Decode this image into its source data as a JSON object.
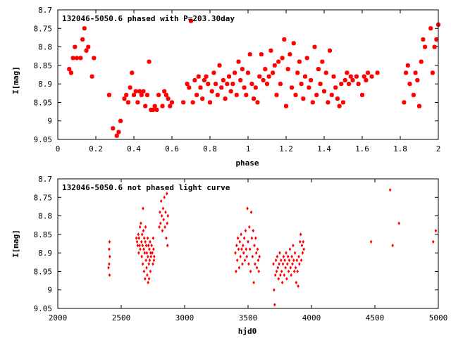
{
  "colors": {
    "points": "#ff0000",
    "axes": "#000000",
    "background": "#ffffff"
  },
  "chart_data": [
    {
      "type": "scatter",
      "title": "132046-5050.6 phased with P=203.30day",
      "xlabel": "phase",
      "ylabel": "I[mag]",
      "xlim": [
        0,
        2
      ],
      "ylim": [
        8.7,
        9.05
      ],
      "y_inverted": true,
      "grid": false,
      "xticks": [
        0,
        0.2,
        0.4,
        0.6,
        0.8,
        1,
        1.2,
        1.4,
        1.6,
        1.8,
        2
      ],
      "xtick_labels": [
        "0",
        "0.2",
        "0.4",
        "0.6",
        "0.8",
        "1",
        "1.2",
        "1.4",
        "1.6",
        "1.8",
        "2"
      ],
      "yticks": [
        8.7,
        8.75,
        8.8,
        8.85,
        8.9,
        8.95,
        9,
        9.05
      ],
      "ytick_labels": [
        "8.7",
        "8.75",
        "8.8",
        "8.85",
        "8.9",
        "8.95",
        "9",
        "9.05"
      ],
      "points": [
        [
          0.06,
          8.86
        ],
        [
          0.07,
          8.87
        ],
        [
          0.08,
          8.83
        ],
        [
          0.09,
          8.8
        ],
        [
          0.1,
          8.83
        ],
        [
          0.12,
          8.83
        ],
        [
          0.13,
          8.78
        ],
        [
          0.14,
          8.75
        ],
        [
          0.15,
          8.81
        ],
        [
          0.16,
          8.8
        ],
        [
          0.18,
          8.88
        ],
        [
          0.19,
          8.83
        ],
        [
          0.27,
          8.93
        ],
        [
          0.29,
          9.02
        ],
        [
          0.31,
          9.04
        ],
        [
          0.32,
          9.03
        ],
        [
          0.33,
          9.0
        ],
        [
          0.35,
          8.94
        ],
        [
          0.36,
          8.93
        ],
        [
          0.37,
          8.95
        ],
        [
          0.38,
          8.91
        ],
        [
          0.39,
          8.87
        ],
        [
          0.4,
          8.93
        ],
        [
          0.41,
          8.92
        ],
        [
          0.42,
          8.95
        ],
        [
          0.43,
          8.92
        ],
        [
          0.44,
          8.93
        ],
        [
          0.45,
          8.92
        ],
        [
          0.46,
          8.96
        ],
        [
          0.47,
          8.93
        ],
        [
          0.48,
          8.84
        ],
        [
          0.49,
          8.97
        ],
        [
          0.5,
          8.97
        ],
        [
          0.51,
          8.96
        ],
        [
          0.52,
          8.97
        ],
        [
          0.53,
          8.93
        ],
        [
          0.55,
          8.96
        ],
        [
          0.56,
          8.92
        ],
        [
          0.57,
          8.93
        ],
        [
          0.58,
          8.94
        ],
        [
          0.59,
          8.96
        ],
        [
          0.6,
          8.95
        ],
        [
          0.66,
          8.95
        ],
        [
          0.68,
          8.9
        ],
        [
          0.69,
          8.91
        ],
        [
          0.7,
          8.73
        ],
        [
          0.71,
          8.95
        ],
        [
          0.72,
          8.89
        ],
        [
          0.73,
          8.93
        ],
        [
          0.74,
          8.88
        ],
        [
          0.75,
          8.91
        ],
        [
          0.76,
          8.94
        ],
        [
          0.77,
          8.89
        ],
        [
          0.78,
          8.88
        ],
        [
          0.79,
          8.9
        ],
        [
          0.8,
          8.95
        ],
        [
          0.81,
          8.92
        ],
        [
          0.82,
          8.87
        ],
        [
          0.83,
          8.9
        ],
        [
          0.84,
          8.93
        ],
        [
          0.85,
          8.85
        ],
        [
          0.86,
          8.91
        ],
        [
          0.87,
          8.89
        ],
        [
          0.88,
          8.94
        ],
        [
          0.89,
          8.9
        ],
        [
          0.9,
          8.88
        ],
        [
          0.91,
          8.92
        ],
        [
          0.92,
          8.9
        ],
        [
          0.93,
          8.87
        ],
        [
          0.94,
          8.93
        ],
        [
          0.95,
          8.84
        ],
        [
          0.96,
          8.89
        ],
        [
          0.97,
          8.86
        ],
        [
          0.98,
          8.91
        ],
        [
          0.99,
          8.93
        ],
        [
          1.0,
          8.87
        ],
        [
          1.01,
          8.82
        ],
        [
          1.02,
          8.9
        ],
        [
          1.03,
          8.94
        ],
        [
          1.04,
          8.91
        ],
        [
          1.05,
          8.95
        ],
        [
          1.06,
          8.88
        ],
        [
          1.07,
          8.82
        ],
        [
          1.08,
          8.89
        ],
        [
          1.09,
          8.86
        ],
        [
          1.1,
          8.9
        ],
        [
          1.11,
          8.88
        ],
        [
          1.12,
          8.81
        ],
        [
          1.13,
          8.87
        ],
        [
          1.14,
          8.85
        ],
        [
          1.15,
          8.93
        ],
        [
          1.16,
          8.84
        ],
        [
          1.17,
          8.9
        ],
        [
          1.18,
          8.83
        ],
        [
          1.19,
          8.78
        ],
        [
          1.2,
          8.96
        ],
        [
          1.21,
          8.86
        ],
        [
          1.22,
          8.82
        ],
        [
          1.23,
          8.91
        ],
        [
          1.24,
          8.79
        ],
        [
          1.25,
          8.93
        ],
        [
          1.26,
          8.87
        ],
        [
          1.27,
          8.84
        ],
        [
          1.28,
          8.9
        ],
        [
          1.29,
          8.94
        ],
        [
          1.3,
          8.88
        ],
        [
          1.31,
          8.83
        ],
        [
          1.32,
          8.91
        ],
        [
          1.33,
          8.89
        ],
        [
          1.34,
          8.95
        ],
        [
          1.35,
          8.8
        ],
        [
          1.36,
          8.93
        ],
        [
          1.37,
          8.86
        ],
        [
          1.38,
          8.9
        ],
        [
          1.39,
          8.84
        ],
        [
          1.4,
          8.92
        ],
        [
          1.41,
          8.87
        ],
        [
          1.42,
          8.95
        ],
        [
          1.43,
          8.81
        ],
        [
          1.44,
          8.93
        ],
        [
          1.45,
          8.88
        ],
        [
          1.46,
          8.91
        ],
        [
          1.47,
          8.94
        ],
        [
          1.48,
          8.96
        ],
        [
          1.49,
          8.9
        ],
        [
          1.5,
          8.95
        ],
        [
          1.51,
          8.89
        ],
        [
          1.52,
          8.87
        ],
        [
          1.53,
          8.9
        ],
        [
          1.54,
          8.88
        ],
        [
          1.55,
          8.89
        ],
        [
          1.57,
          8.88
        ],
        [
          1.58,
          8.9
        ],
        [
          1.6,
          8.93
        ],
        [
          1.61,
          8.88
        ],
        [
          1.62,
          8.89
        ],
        [
          1.63,
          8.87
        ],
        [
          1.65,
          8.88
        ],
        [
          1.68,
          8.87
        ],
        [
          1.82,
          8.95
        ],
        [
          1.83,
          8.87
        ],
        [
          1.84,
          8.85
        ],
        [
          1.85,
          8.9
        ],
        [
          1.87,
          8.93
        ],
        [
          1.88,
          8.87
        ],
        [
          1.89,
          8.89
        ],
        [
          1.9,
          8.96
        ],
        [
          1.91,
          8.84
        ],
        [
          1.92,
          8.78
        ],
        [
          1.93,
          8.8
        ],
        [
          1.96,
          8.75
        ],
        [
          1.97,
          8.87
        ],
        [
          1.98,
          8.8
        ],
        [
          1.99,
          8.78
        ],
        [
          2.0,
          8.74
        ]
      ]
    },
    {
      "type": "scatter",
      "title": "132046-5050.6 not phased light curve",
      "xlabel": "hjd0",
      "ylabel": "I[mag]",
      "xlim": [
        2000,
        5000
      ],
      "ylim": [
        8.7,
        9.05
      ],
      "y_inverted": true,
      "grid": false,
      "xticks": [
        2000,
        2500,
        3000,
        3500,
        4000,
        4500,
        5000
      ],
      "xtick_labels": [
        "2000",
        "2500",
        "3000",
        "3500",
        "4000",
        "4500",
        "5000"
      ],
      "yticks": [
        8.7,
        8.75,
        8.8,
        8.85,
        8.9,
        8.95,
        9,
        9.05
      ],
      "ytick_labels": [
        "8.7",
        "8.75",
        "8.8",
        "8.85",
        "8.9",
        "8.95",
        "9",
        "9.05"
      ],
      "points": [
        [
          2400,
          8.94
        ],
        [
          2405,
          8.93
        ],
        [
          2405,
          8.89
        ],
        [
          2408,
          8.87
        ],
        [
          2408,
          8.96
        ],
        [
          2410,
          8.91
        ],
        [
          2620,
          8.86
        ],
        [
          2625,
          8.87
        ],
        [
          2630,
          8.88
        ],
        [
          2635,
          8.85
        ],
        [
          2638,
          8.9
        ],
        [
          2640,
          8.86
        ],
        [
          2645,
          8.88
        ],
        [
          2648,
          8.83
        ],
        [
          2650,
          8.89
        ],
        [
          2655,
          8.82
        ],
        [
          2660,
          8.87
        ],
        [
          2662,
          8.91
        ],
        [
          2665,
          8.85
        ],
        [
          2668,
          8.88
        ],
        [
          2670,
          8.93
        ],
        [
          2672,
          8.78
        ],
        [
          2675,
          8.84
        ],
        [
          2678,
          8.89
        ],
        [
          2680,
          8.95
        ],
        [
          2682,
          8.86
        ],
        [
          2685,
          8.9
        ],
        [
          2688,
          8.97
        ],
        [
          2690,
          8.87
        ],
        [
          2692,
          8.83
        ],
        [
          2695,
          8.92
        ],
        [
          2698,
          8.88
        ],
        [
          2700,
          8.94
        ],
        [
          2702,
          8.9
        ],
        [
          2705,
          8.96
        ],
        [
          2708,
          8.86
        ],
        [
          2710,
          8.91
        ],
        [
          2712,
          8.98
        ],
        [
          2715,
          8.88
        ],
        [
          2718,
          8.93
        ],
        [
          2720,
          8.97
        ],
        [
          2722,
          8.89
        ],
        [
          2725,
          8.92
        ],
        [
          2728,
          8.87
        ],
        [
          2730,
          8.95
        ],
        [
          2732,
          8.9
        ],
        [
          2735,
          8.91
        ],
        [
          2740,
          8.88
        ],
        [
          2745,
          8.9
        ],
        [
          2750,
          8.93
        ],
        [
          2752,
          8.86
        ],
        [
          2755,
          8.89
        ],
        [
          2758,
          8.92
        ],
        [
          2760,
          8.91
        ],
        [
          2800,
          8.83
        ],
        [
          2805,
          8.79
        ],
        [
          2810,
          8.82
        ],
        [
          2815,
          8.76
        ],
        [
          2820,
          8.8
        ],
        [
          2825,
          8.84
        ],
        [
          2830,
          8.78
        ],
        [
          2835,
          8.81
        ],
        [
          2840,
          8.75
        ],
        [
          2845,
          8.83
        ],
        [
          2850,
          8.79
        ],
        [
          2855,
          8.86
        ],
        [
          2860,
          8.74
        ],
        [
          2862,
          8.82
        ],
        [
          2865,
          8.88
        ],
        [
          2868,
          8.8
        ],
        [
          3400,
          8.9
        ],
        [
          3405,
          8.95
        ],
        [
          3410,
          8.88
        ],
        [
          3415,
          8.92
        ],
        [
          3420,
          8.86
        ],
        [
          3425,
          8.89
        ],
        [
          3430,
          8.94
        ],
        [
          3435,
          8.87
        ],
        [
          3440,
          8.91
        ],
        [
          3445,
          8.85
        ],
        [
          3450,
          8.89
        ],
        [
          3455,
          8.93
        ],
        [
          3460,
          8.88
        ],
        [
          3465,
          8.9
        ],
        [
          3470,
          8.86
        ],
        [
          3475,
          8.92
        ],
        [
          3480,
          8.84
        ],
        [
          3485,
          8.89
        ],
        [
          3490,
          8.91
        ],
        [
          3495,
          8.78
        ],
        [
          3500,
          8.87
        ],
        [
          3505,
          8.93
        ],
        [
          3510,
          8.83
        ],
        [
          3515,
          8.89
        ],
        [
          3520,
          8.95
        ],
        [
          3525,
          8.79
        ],
        [
          3530,
          8.86
        ],
        [
          3535,
          8.91
        ],
        [
          3540,
          8.84
        ],
        [
          3545,
          8.98
        ],
        [
          3550,
          8.88
        ],
        [
          3555,
          8.93
        ],
        [
          3560,
          8.86
        ],
        [
          3565,
          8.9
        ],
        [
          3570,
          8.94
        ],
        [
          3575,
          8.89
        ],
        [
          3580,
          8.92
        ],
        [
          3585,
          8.95
        ],
        [
          3590,
          8.91
        ],
        [
          3700,
          8.93
        ],
        [
          3705,
          9.0
        ],
        [
          3710,
          9.04
        ],
        [
          3715,
          8.96
        ],
        [
          3720,
          8.92
        ],
        [
          3725,
          8.95
        ],
        [
          3730,
          8.91
        ],
        [
          3735,
          8.94
        ],
        [
          3740,
          8.97
        ],
        [
          3745,
          8.93
        ],
        [
          3750,
          8.9
        ],
        [
          3755,
          8.96
        ],
        [
          3760,
          8.92
        ],
        [
          3765,
          8.95
        ],
        [
          3770,
          8.98
        ],
        [
          3775,
          8.93
        ],
        [
          3780,
          8.91
        ],
        [
          3785,
          8.96
        ],
        [
          3790,
          8.92
        ],
        [
          3795,
          8.94
        ],
        [
          3800,
          8.9
        ],
        [
          3805,
          8.97
        ],
        [
          3810,
          8.93
        ],
        [
          3815,
          8.91
        ],
        [
          3820,
          8.95
        ],
        [
          3825,
          8.92
        ],
        [
          3830,
          8.89
        ],
        [
          3835,
          8.94
        ],
        [
          3840,
          8.96
        ],
        [
          3845,
          8.91
        ],
        [
          3850,
          8.93
        ],
        [
          3855,
          8.88
        ],
        [
          3860,
          8.92
        ],
        [
          3865,
          8.95
        ],
        [
          3870,
          8.9
        ],
        [
          3875,
          8.94
        ],
        [
          3880,
          8.98
        ],
        [
          3885,
          8.92
        ],
        [
          3890,
          8.95
        ],
        [
          3895,
          8.99
        ],
        [
          3900,
          8.91
        ],
        [
          3905,
          8.93
        ],
        [
          3910,
          8.87
        ],
        [
          3915,
          8.85
        ],
        [
          3920,
          8.92
        ],
        [
          3925,
          8.88
        ],
        [
          3930,
          8.9
        ],
        [
          3935,
          8.87
        ],
        [
          3940,
          8.89
        ],
        [
          4470,
          8.87
        ],
        [
          4620,
          8.73
        ],
        [
          4640,
          8.88
        ],
        [
          4690,
          8.82
        ],
        [
          4960,
          8.87
        ],
        [
          4980,
          8.84
        ]
      ]
    }
  ]
}
